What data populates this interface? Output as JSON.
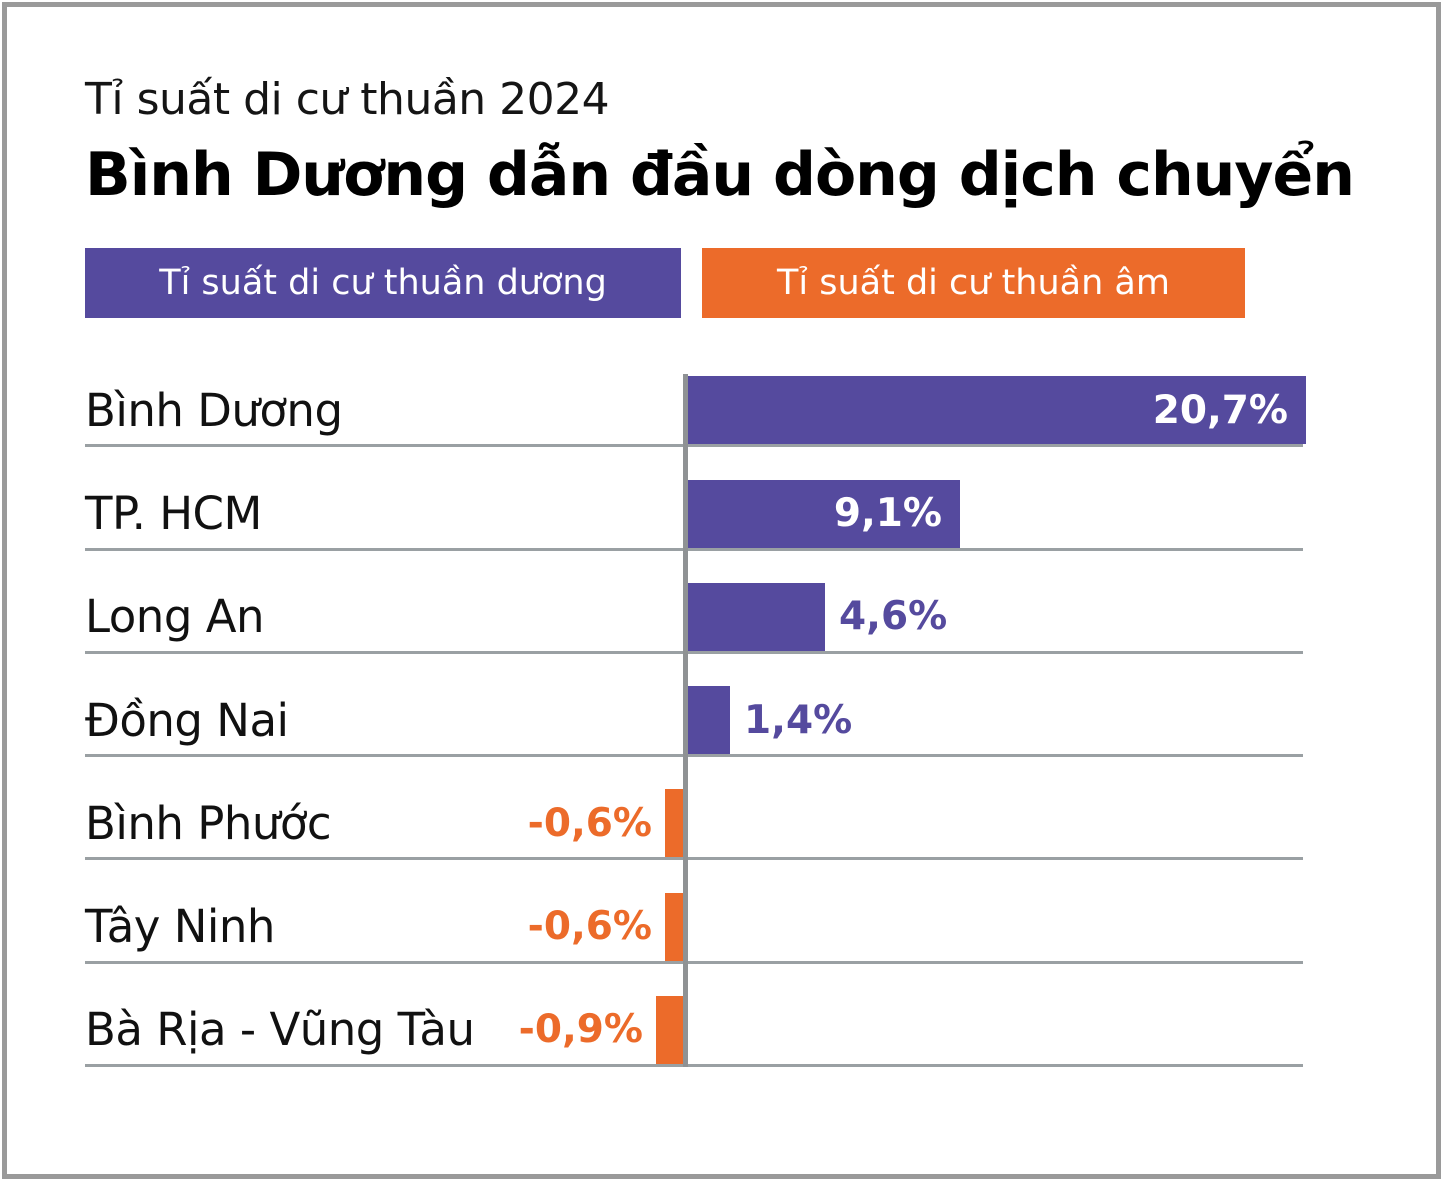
{
  "header": {
    "kicker": "Tỉ suất di cư thuần 2024",
    "title": "Bình Dương dẫn đầu dòng dịch chuyển"
  },
  "legend": {
    "positive_label": "Tỉ suất di cư thuần dương",
    "negative_label": "Tỉ suất di cư thuần âm"
  },
  "colors": {
    "positive": "#554a9e",
    "negative": "#ec6b2a",
    "separator": "#9aa0a3",
    "axis": "#8f9294",
    "frame_border": "#9a9a9a",
    "text": "#111111",
    "value_inside": "#ffffff"
  },
  "chart_data": {
    "type": "bar",
    "orientation": "horizontal",
    "title": "Bình Dương dẫn đầu dòng dịch chuyển",
    "subtitle": "Tỉ suất di cư thuần 2024",
    "unit": "%",
    "xlim": [
      -0.9,
      20.7
    ],
    "grid": "row-separators",
    "legend_position": "top",
    "legend_entries": [
      "Tỉ suất di cư thuần dương",
      "Tỉ suất di cư thuần âm"
    ],
    "categories": [
      "Bình Dương",
      "TP. HCM",
      "Long An",
      "Đồng Nai",
      "Bình Phước",
      "Tây Ninh",
      "Bà Rịa - Vũng Tàu"
    ],
    "values": [
      20.7,
      9.1,
      4.6,
      1.4,
      -0.6,
      -0.6,
      -0.9
    ],
    "value_labels": [
      "20,7%",
      "9,1%",
      "4,6%",
      "1,4%",
      "-0,6%",
      "-0,6%",
      "-0,9%"
    ]
  }
}
